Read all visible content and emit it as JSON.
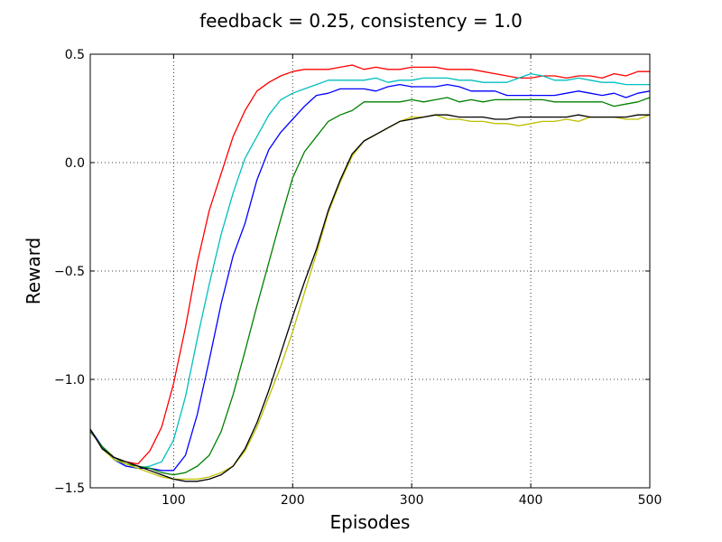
{
  "chart_data": {
    "type": "line",
    "title": "feedback = 0.25, consistency = 1.0",
    "xlabel": "Episodes",
    "ylabel": "Reward",
    "xlim": [
      30,
      500
    ],
    "ylim": [
      -1.5,
      0.5
    ],
    "xticks": [
      100,
      200,
      300,
      400,
      500
    ],
    "xtick_labels": [
      "100",
      "200",
      "300",
      "400",
      "500"
    ],
    "yticks": [
      -1.5,
      -1.0,
      -0.5,
      0.0,
      0.5
    ],
    "ytick_labels": [
      "−1.5",
      "−1.0",
      "−0.5",
      "0.0",
      "0.5"
    ],
    "grid": true,
    "x": [
      30,
      40,
      50,
      60,
      70,
      80,
      90,
      100,
      110,
      120,
      130,
      140,
      150,
      160,
      170,
      180,
      190,
      200,
      210,
      220,
      230,
      240,
      250,
      260,
      270,
      280,
      290,
      300,
      310,
      320,
      330,
      340,
      350,
      360,
      370,
      380,
      390,
      400,
      410,
      420,
      430,
      440,
      450,
      460,
      470,
      480,
      490,
      500
    ],
    "series": [
      {
        "color": "#ff0000",
        "values": [
          -1.24,
          -1.31,
          -1.36,
          -1.38,
          -1.39,
          -1.33,
          -1.22,
          -1.02,
          -0.76,
          -0.46,
          -0.22,
          -0.05,
          0.12,
          0.24,
          0.33,
          0.37,
          0.4,
          0.42,
          0.43,
          0.43,
          0.43,
          0.44,
          0.45,
          0.43,
          0.44,
          0.43,
          0.43,
          0.44,
          0.44,
          0.44,
          0.43,
          0.43,
          0.43,
          0.42,
          0.41,
          0.4,
          0.39,
          0.39,
          0.4,
          0.4,
          0.39,
          0.4,
          0.4,
          0.39,
          0.41,
          0.4,
          0.42,
          0.42
        ]
      },
      {
        "color": "#00bfbf",
        "values": [
          -1.23,
          -1.31,
          -1.37,
          -1.4,
          -1.41,
          -1.4,
          -1.38,
          -1.28,
          -1.08,
          -0.81,
          -0.56,
          -0.33,
          -0.14,
          0.02,
          0.12,
          0.22,
          0.29,
          0.32,
          0.34,
          0.36,
          0.38,
          0.38,
          0.38,
          0.38,
          0.39,
          0.37,
          0.38,
          0.38,
          0.39,
          0.39,
          0.39,
          0.38,
          0.38,
          0.37,
          0.37,
          0.37,
          0.39,
          0.41,
          0.4,
          0.38,
          0.38,
          0.39,
          0.38,
          0.37,
          0.37,
          0.36,
          0.36,
          0.36
        ]
      },
      {
        "color": "#0000ff",
        "values": [
          -1.23,
          -1.31,
          -1.37,
          -1.4,
          -1.41,
          -1.41,
          -1.42,
          -1.42,
          -1.35,
          -1.16,
          -0.91,
          -0.65,
          -0.43,
          -0.28,
          -0.08,
          0.06,
          0.14,
          0.2,
          0.26,
          0.31,
          0.32,
          0.34,
          0.34,
          0.34,
          0.33,
          0.35,
          0.36,
          0.35,
          0.35,
          0.35,
          0.36,
          0.35,
          0.33,
          0.33,
          0.33,
          0.31,
          0.31,
          0.31,
          0.31,
          0.31,
          0.32,
          0.33,
          0.32,
          0.31,
          0.32,
          0.3,
          0.32,
          0.33
        ]
      },
      {
        "color": "#008000",
        "values": [
          -1.24,
          -1.31,
          -1.36,
          -1.39,
          -1.4,
          -1.41,
          -1.43,
          -1.44,
          -1.43,
          -1.4,
          -1.35,
          -1.24,
          -1.07,
          -0.87,
          -0.66,
          -0.46,
          -0.26,
          -0.07,
          0.05,
          0.12,
          0.19,
          0.22,
          0.24,
          0.28,
          0.28,
          0.28,
          0.28,
          0.29,
          0.28,
          0.29,
          0.3,
          0.28,
          0.29,
          0.28,
          0.29,
          0.29,
          0.29,
          0.29,
          0.29,
          0.28,
          0.28,
          0.28,
          0.28,
          0.28,
          0.26,
          0.27,
          0.28,
          0.3
        ]
      },
      {
        "color": "#bfbf00",
        "values": [
          -1.23,
          -1.32,
          -1.37,
          -1.39,
          -1.41,
          -1.43,
          -1.45,
          -1.46,
          -1.46,
          -1.46,
          -1.45,
          -1.43,
          -1.4,
          -1.33,
          -1.22,
          -1.08,
          -0.94,
          -0.78,
          -0.6,
          -0.42,
          -0.23,
          -0.09,
          0.03,
          0.1,
          0.13,
          0.16,
          0.19,
          0.21,
          0.21,
          0.22,
          0.2,
          0.2,
          0.19,
          0.19,
          0.18,
          0.18,
          0.17,
          0.18,
          0.19,
          0.19,
          0.2,
          0.19,
          0.21,
          0.21,
          0.21,
          0.2,
          0.2,
          0.22
        ]
      },
      {
        "color": "#000000",
        "values": [
          -1.23,
          -1.32,
          -1.36,
          -1.38,
          -1.4,
          -1.42,
          -1.44,
          -1.46,
          -1.47,
          -1.47,
          -1.46,
          -1.44,
          -1.4,
          -1.32,
          -1.2,
          -1.05,
          -0.88,
          -0.71,
          -0.55,
          -0.4,
          -0.22,
          -0.08,
          0.04,
          0.1,
          0.13,
          0.16,
          0.19,
          0.2,
          0.21,
          0.22,
          0.22,
          0.21,
          0.21,
          0.21,
          0.2,
          0.2,
          0.21,
          0.21,
          0.21,
          0.21,
          0.21,
          0.22,
          0.21,
          0.21,
          0.21,
          0.21,
          0.22,
          0.22
        ]
      }
    ]
  }
}
